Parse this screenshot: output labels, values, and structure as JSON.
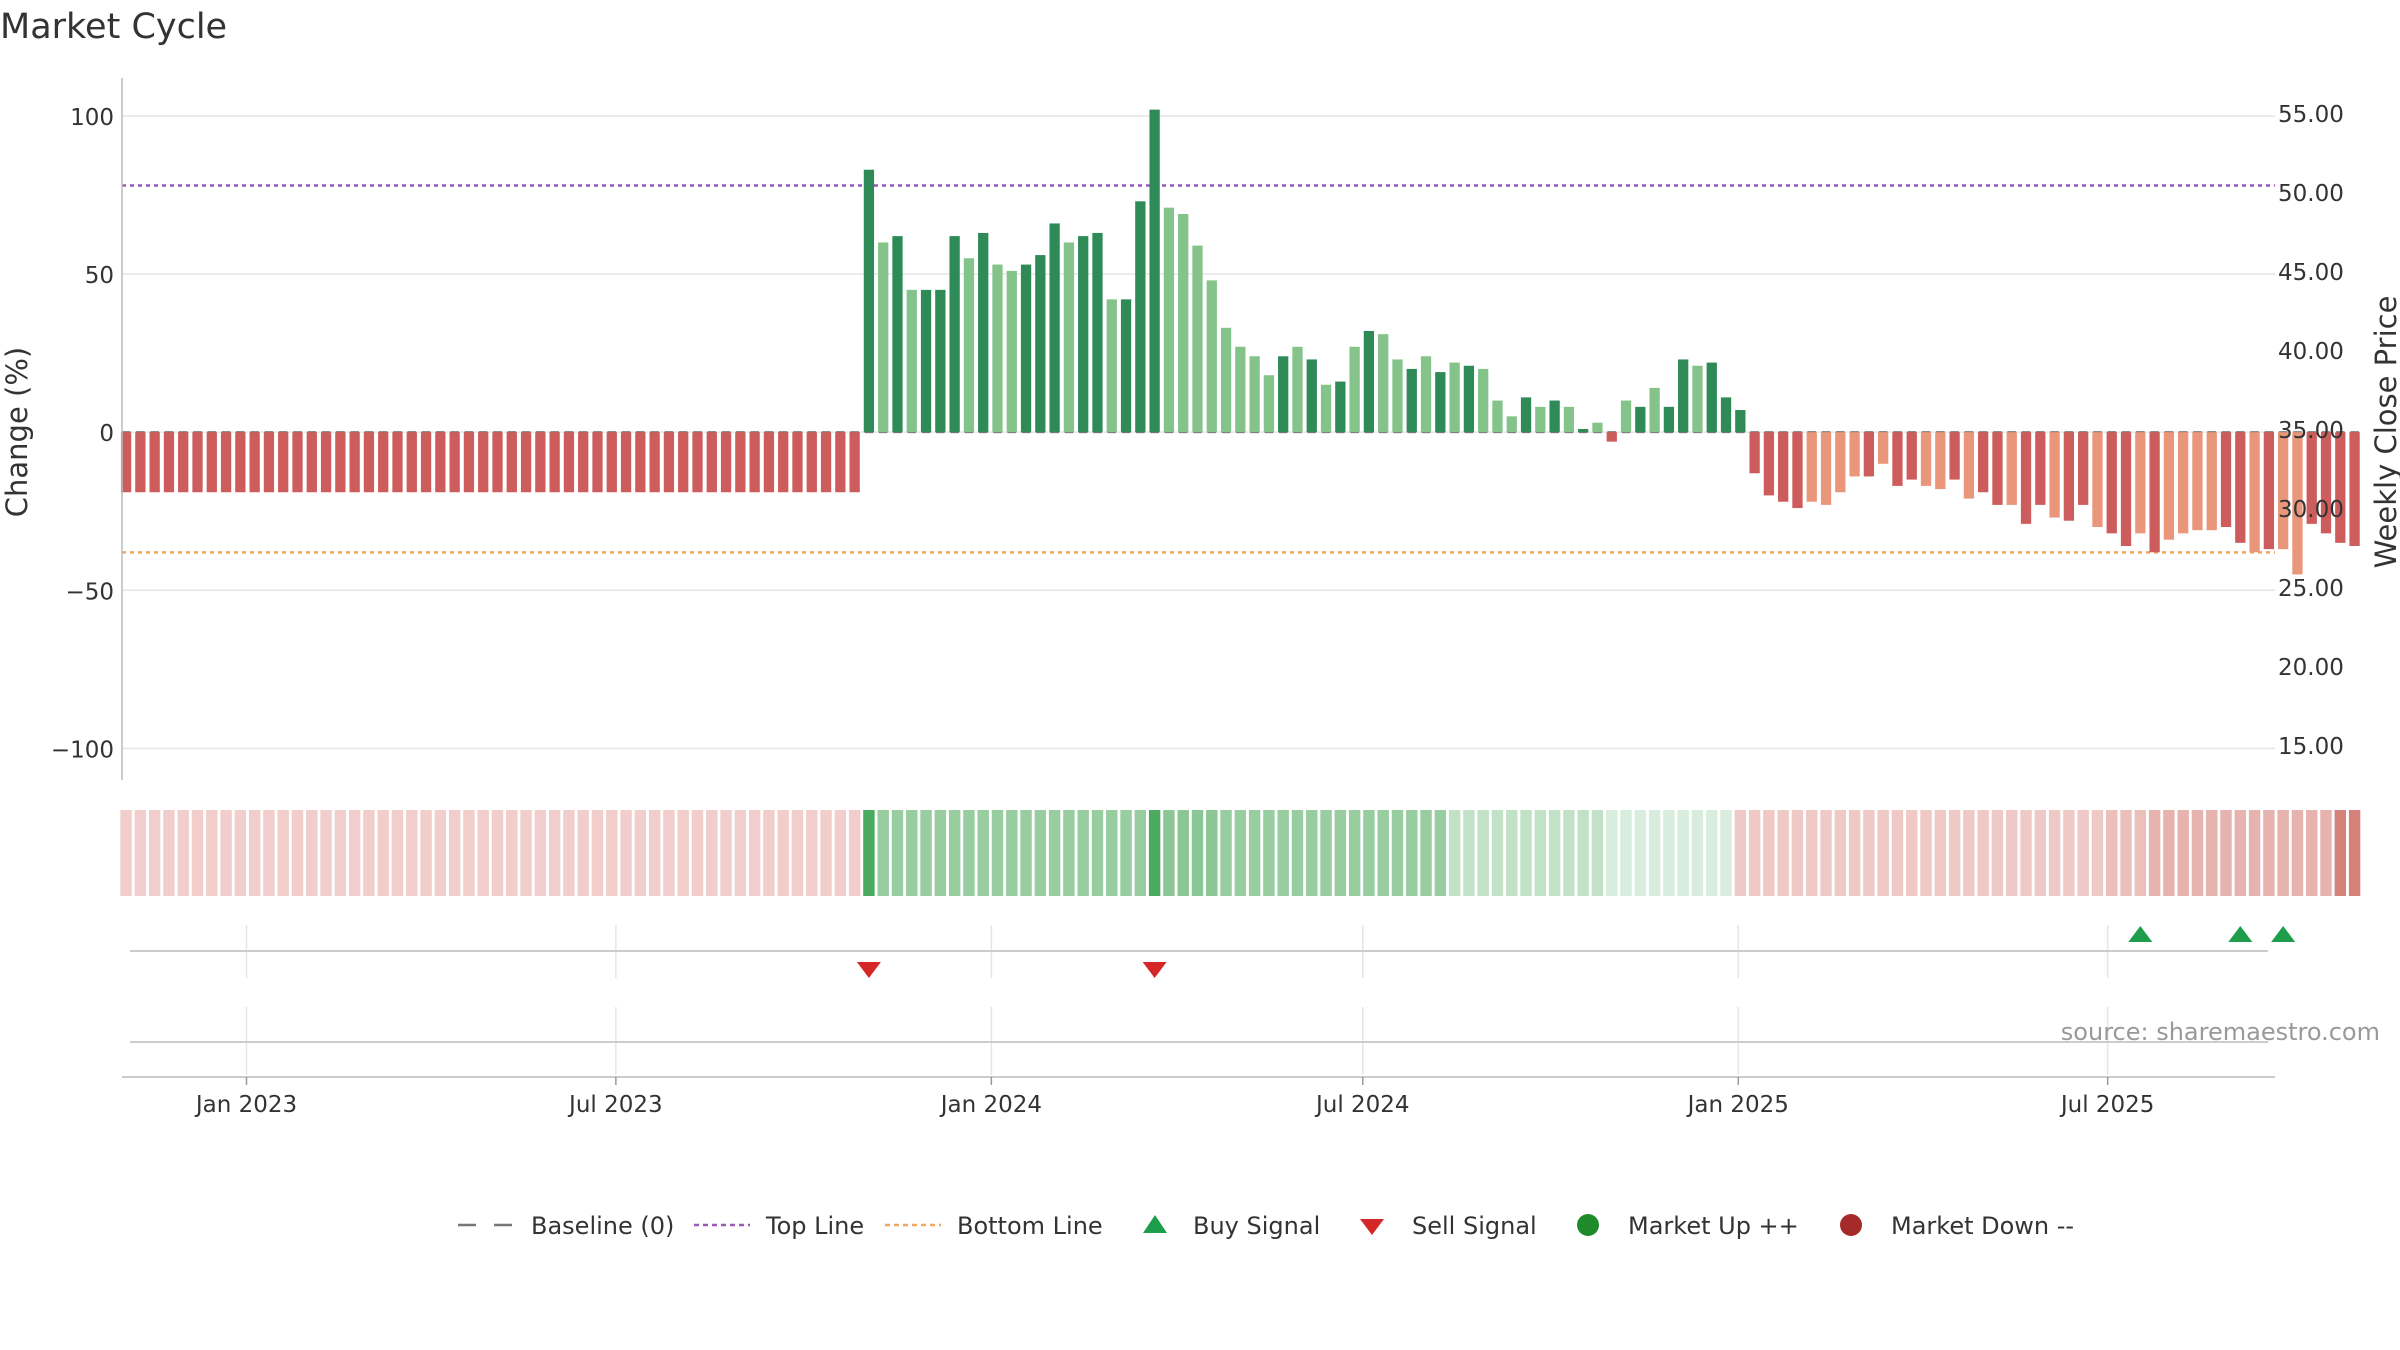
{
  "chart_data": {
    "type": "bar",
    "title": "Market Cycle",
    "ylabel": "Change (%)",
    "y2label": "Weekly Close Price",
    "ylim": [
      -110,
      112
    ],
    "y2lim": [
      12.8,
      57.2
    ],
    "yticks": [
      100,
      50,
      0,
      -50,
      -100
    ],
    "yticklabels": [
      "100",
      "50",
      "0",
      "−50",
      "−100"
    ],
    "y2ticks": [
      55,
      50,
      45,
      40,
      35,
      30,
      25,
      20,
      15
    ],
    "y2ticklabels": [
      "55.00",
      "50.00",
      "45.00",
      "40.00",
      "35.00",
      "30.00",
      "25.00",
      "20.00",
      "15.00"
    ],
    "xlim": [
      "2022-11-01",
      "2025-09-21"
    ],
    "xticks": [
      "2023-01-01",
      "2023-07-01",
      "2024-01-01",
      "2024-07-01",
      "2025-01-01",
      "2025-07-01"
    ],
    "xticklabels": [
      "Jan 2023",
      "Jul 2023",
      "Jan 2024",
      "Jul 2024",
      "Jan 2025",
      "Jul 2025"
    ],
    "start_week": "2022-11-03",
    "values": [
      -19,
      -19,
      -19,
      -19,
      -19,
      -19,
      -19,
      -19,
      -19,
      -19,
      -19,
      -19,
      -19,
      -19,
      -19,
      -19,
      -19,
      -19,
      -19,
      -19,
      -19,
      -19,
      -19,
      -19,
      -19,
      -19,
      -19,
      -19,
      -19,
      -19,
      -19,
      -19,
      -19,
      -19,
      -19,
      -19,
      -19,
      -19,
      -19,
      -19,
      -19,
      -19,
      -19,
      -19,
      -19,
      -19,
      -19,
      -19,
      -19,
      -19,
      -19,
      -19,
      83,
      60,
      62,
      45,
      45,
      45,
      62,
      55,
      63,
      53,
      51,
      53,
      56,
      66,
      60,
      62,
      63,
      42,
      42,
      73,
      102,
      71,
      69,
      59,
      48,
      33,
      27,
      24,
      18,
      24,
      27,
      23,
      15,
      16,
      27,
      32,
      31,
      23,
      20,
      24,
      19,
      22,
      21,
      20,
      10,
      5,
      11,
      8,
      10,
      8,
      1,
      3,
      -3,
      10,
      8,
      14,
      8,
      23,
      21,
      22,
      11,
      7,
      -13,
      -20,
      -22,
      -24,
      -22,
      -23,
      -19,
      -14,
      -14,
      -10,
      -17,
      -15,
      -17,
      -18,
      -15,
      -21,
      -19,
      -23,
      -23,
      -29,
      -23,
      -27,
      -28,
      -23,
      -30,
      -32,
      -36,
      -32,
      -38,
      -34,
      -32,
      -31,
      -31,
      -30,
      -35,
      -38,
      -37,
      -37,
      -45,
      -29,
      -32,
      -35,
      -36
    ],
    "bar_shade": [
      0,
      0,
      0,
      0,
      0,
      0,
      0,
      0,
      0,
      0,
      0,
      0,
      0,
      0,
      0,
      0,
      0,
      0,
      0,
      0,
      0,
      0,
      0,
      0,
      0,
      0,
      0,
      0,
      0,
      0,
      0,
      0,
      0,
      0,
      0,
      0,
      0,
      0,
      0,
      0,
      0,
      0,
      0,
      0,
      0,
      0,
      0,
      0,
      0,
      0,
      0,
      0,
      0,
      1,
      0,
      1,
      0,
      0,
      0,
      1,
      0,
      1,
      1,
      0,
      0,
      0,
      1,
      0,
      0,
      1,
      0,
      0,
      0,
      1,
      1,
      1,
      1,
      1,
      1,
      1,
      1,
      0,
      1,
      0,
      1,
      0,
      1,
      0,
      1,
      1,
      0,
      1,
      0,
      1,
      0,
      1,
      1,
      1,
      0,
      1,
      0,
      1,
      0,
      1,
      0,
      1,
      0,
      1,
      0,
      0,
      1,
      0,
      0,
      0,
      0,
      0,
      0,
      0,
      1,
      1,
      1,
      1,
      0,
      1,
      0,
      0,
      1,
      1,
      0,
      1,
      0,
      0,
      1,
      0,
      0,
      1,
      0,
      0,
      1,
      0,
      0,
      1,
      0,
      1,
      1,
      1,
      1,
      0,
      0,
      1,
      0,
      1,
      1,
      0,
      0
    ],
    "band_rgb": [
      [
        221,
        132,
        126
      ],
      [
        76,
        170,
        96
      ],
      [
        126,
        193,
        136
      ],
      [
        168,
        214,
        176
      ],
      [
        200,
        230,
        206
      ],
      [
        224,
        148,
        142
      ],
      [
        214,
        128,
        122
      ]
    ],
    "band_ranges": [
      [
        0,
        51,
        0
      ],
      [
        52,
        52,
        1
      ],
      [
        53,
        71,
        2
      ],
      [
        72,
        72,
        1
      ],
      [
        73,
        92,
        2
      ],
      [
        93,
        103,
        3
      ],
      [
        104,
        112,
        4
      ],
      [
        113,
        141,
        5
      ],
      [
        142,
        156,
        6
      ]
    ],
    "band_alpha_index": [
      4,
      4,
      4,
      4,
      4,
      4,
      4,
      4,
      4,
      4,
      4,
      4,
      4,
      4,
      4,
      4,
      4,
      4,
      4,
      4,
      4,
      4,
      4,
      4,
      4,
      4,
      4,
      4,
      4,
      4,
      4,
      4,
      4,
      4,
      4,
      4,
      4,
      4,
      4,
      4,
      4,
      4,
      4,
      4,
      4,
      4,
      4,
      4,
      4,
      4,
      4,
      4,
      10,
      8,
      8,
      8,
      8,
      8,
      8,
      8,
      8,
      8,
      8,
      8,
      8,
      8,
      8,
      8,
      8,
      8,
      8,
      8,
      10,
      9,
      9,
      9,
      9,
      8,
      8,
      8,
      8,
      8,
      8,
      8,
      8,
      8,
      8,
      8,
      8,
      8,
      8,
      8,
      8,
      7,
      7,
      7,
      7,
      7,
      7,
      7,
      7,
      7,
      7,
      7,
      7,
      7,
      7,
      7,
      7,
      7,
      7,
      7,
      7,
      5,
      5,
      5,
      5,
      5,
      5,
      5,
      5,
      5,
      5,
      5,
      5,
      5,
      5,
      5,
      5,
      5,
      5,
      5,
      5,
      5,
      5,
      5,
      5,
      5,
      5,
      6,
      6,
      6,
      6,
      6,
      6,
      6,
      6,
      6,
      6,
      6,
      6,
      6,
      6,
      6,
      6
    ],
    "top_line": 78,
    "bottom_line": -38,
    "buy_signals": [
      141,
      148,
      151
    ],
    "sell_signals": [
      52,
      72
    ],
    "legend": {
      "placement": "bottom",
      "items": [
        {
          "label": "Baseline (0)",
          "marker": "dash",
          "color": "#777777"
        },
        {
          "label": "Top Line",
          "marker": "dotted",
          "color": "#9b59b6"
        },
        {
          "label": "Bottom Line",
          "marker": "dotted",
          "color": "#f0a560"
        },
        {
          "label": "Buy Signal",
          "marker": "triangle-up",
          "color": "#1e9e4a"
        },
        {
          "label": "Sell Signal",
          "marker": "triangle-down",
          "color": "#d62728"
        },
        {
          "label": "Market Up ++",
          "marker": "circle",
          "color": "#1f8a2a"
        },
        {
          "label": "Market Down --",
          "marker": "circle",
          "color": "#a52a2a"
        }
      ]
    },
    "colors": {
      "pos_dark": "#2e8b57",
      "pos_light": "#84c48a",
      "neg_dark": "#cd5c5c",
      "neg_light": "#e9967a",
      "top_line": "#9b59b6",
      "bottom_line": "#f0a560",
      "buy": "#1e9e4a",
      "sell": "#d62728",
      "grid": "#e6e6e6"
    },
    "grid": true,
    "source": "source: sharemaestro.com"
  }
}
